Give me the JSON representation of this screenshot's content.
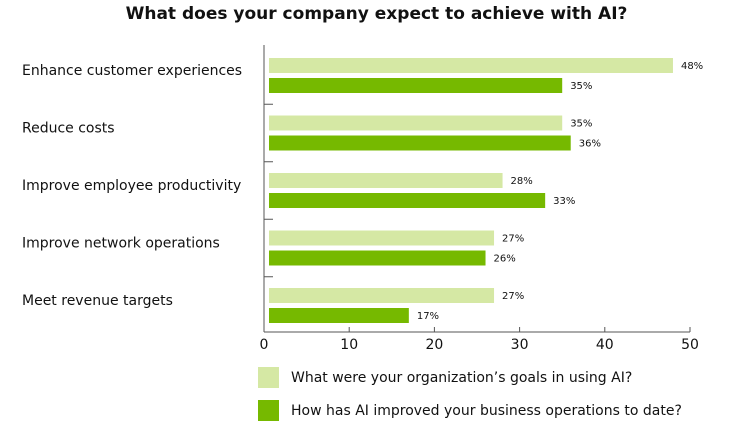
{
  "chart_data": {
    "type": "bar",
    "orientation": "horizontal",
    "title": "What does your company expect to achieve with AI?",
    "categories": [
      "Enhance customer experiences",
      "Reduce costs",
      "Improve employee productivity",
      "Improve network operations",
      "Meet revenue targets"
    ],
    "series": [
      {
        "name": "What were your organization’s goals in using AI?",
        "color": "#d5e8a4",
        "values": [
          48,
          35,
          28,
          27,
          27
        ]
      },
      {
        "name": "How has AI improved your business operations to date?",
        "color": "#76b900",
        "values": [
          35,
          36,
          33,
          26,
          17
        ]
      }
    ],
    "value_suffix": "%",
    "xlim": [
      0,
      50
    ],
    "xticks": [
      0,
      10,
      20,
      30,
      40,
      50
    ],
    "grid": false,
    "legend_position": "bottom"
  }
}
